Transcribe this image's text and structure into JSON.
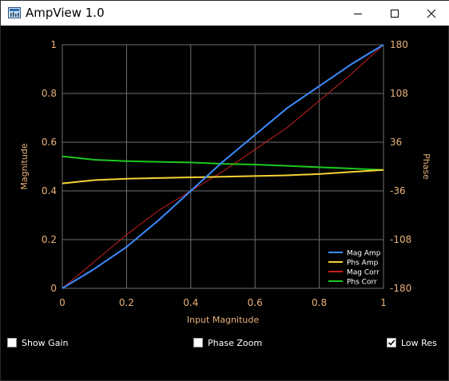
{
  "window": {
    "title": "AmpView 1.0",
    "icon": "app-icon",
    "controls": [
      "minimize-icon",
      "maximize-icon",
      "close-icon"
    ]
  },
  "controls": {
    "show_gain": {
      "label": "Show Gain",
      "checked": false
    },
    "phase_zoom": {
      "label": "Phase Zoom",
      "checked": false
    },
    "low_res": {
      "label": "Low Res",
      "checked": true
    }
  },
  "colors": {
    "background": "#000000",
    "grid": "#6e6e6e",
    "axis_text": "#e8b07a",
    "mag_amp": "#3d8bff",
    "phs_amp": "#f5d233",
    "mag_corr": "#c81e1e",
    "phs_corr": "#1ec81e"
  },
  "chart_data": {
    "type": "line",
    "xlabel": "Input Magnitude",
    "ylabel": "Magnitude",
    "y2label": "Phase",
    "xlim": [
      0,
      1
    ],
    "ylim": [
      0,
      1
    ],
    "y2lim": [
      -180,
      180
    ],
    "x_ticks": [
      "0",
      "0.2",
      "0.4",
      "0.6",
      "0.8",
      "1"
    ],
    "y_ticks": [
      "0",
      "0.2",
      "0.4",
      "0.6",
      "0.8",
      "1"
    ],
    "y2_ticks": [
      "-180",
      "-108",
      "-36",
      "36",
      "108",
      "180"
    ],
    "grid": true,
    "legend": "bottom-right",
    "x": [
      0,
      0.1,
      0.2,
      0.3,
      0.4,
      0.5,
      0.6,
      0.7,
      0.8,
      0.9,
      1.0
    ],
    "series": [
      {
        "name": "Mag Amp",
        "axis": "left",
        "values": [
          0,
          0.08,
          0.17,
          0.28,
          0.4,
          0.52,
          0.63,
          0.74,
          0.83,
          0.92,
          1.0
        ]
      },
      {
        "name": "Phs Amp",
        "axis": "right",
        "values": [
          -25,
          -20,
          -18,
          -17,
          -16,
          -15,
          -14,
          -13,
          -11,
          -8,
          -5
        ]
      },
      {
        "name": "Mag Corr",
        "axis": "left",
        "values": [
          0,
          0.11,
          0.22,
          0.32,
          0.4,
          0.48,
          0.57,
          0.66,
          0.77,
          0.88,
          1.0
        ]
      },
      {
        "name": "Phs Corr",
        "axis": "right",
        "values": [
          15,
          10,
          8,
          7,
          6,
          4,
          3,
          1,
          -1,
          -3,
          -5
        ]
      }
    ]
  }
}
